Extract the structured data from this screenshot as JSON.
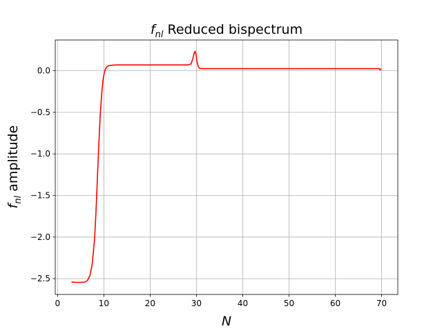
{
  "chart_data": {
    "type": "line",
    "title_symbol": "f",
    "title_subscript": "nl",
    "title_text": " Reduced bispectrum",
    "xlabel": "N",
    "ylabel_symbol": "f",
    "ylabel_subscript": "nl",
    "ylabel_text": " amplitude",
    "xlim": [
      -0.5,
      73.5
    ],
    "ylim": [
      -2.69,
      0.37
    ],
    "xticks": [
      0,
      10,
      20,
      30,
      40,
      50,
      60,
      70
    ],
    "xtick_labels": [
      "0",
      "10",
      "20",
      "30",
      "40",
      "50",
      "60",
      "70"
    ],
    "yticks": [
      0.0,
      -0.5,
      -1.0,
      -1.5,
      -2.0,
      -2.5
    ],
    "ytick_labels": [
      "0.0",
      "−0.5",
      "−1.0",
      "−1.5",
      "−2.0",
      "−2.5"
    ],
    "grid": true,
    "series": [
      {
        "color": "#ff0000",
        "x": [
          3.0,
          4.0,
          5.0,
          6.0,
          6.5,
          7.0,
          7.5,
          8.0,
          8.3,
          8.6,
          8.9,
          9.2,
          9.5,
          9.8,
          10.1,
          10.4,
          10.7,
          11.0,
          11.5,
          12.0,
          13.0,
          15.0,
          20.0,
          25.0,
          28.0,
          28.8,
          29.2,
          29.5,
          29.7,
          29.9,
          30.1,
          30.4,
          30.7,
          31.0,
          31.5,
          35.0,
          40.0,
          50.0,
          60.0,
          69.5,
          69.7,
          69.9
        ],
        "y": [
          -2.54,
          -2.545,
          -2.545,
          -2.54,
          -2.52,
          -2.46,
          -2.32,
          -2.02,
          -1.7,
          -1.3,
          -0.9,
          -0.55,
          -0.3,
          -0.12,
          -0.02,
          0.03,
          0.05,
          0.06,
          0.065,
          0.068,
          0.07,
          0.07,
          0.07,
          0.07,
          0.07,
          0.08,
          0.14,
          0.21,
          0.235,
          0.2,
          0.12,
          0.05,
          0.03,
          0.025,
          0.025,
          0.025,
          0.025,
          0.025,
          0.025,
          0.025,
          0.01,
          0.025
        ]
      }
    ]
  }
}
